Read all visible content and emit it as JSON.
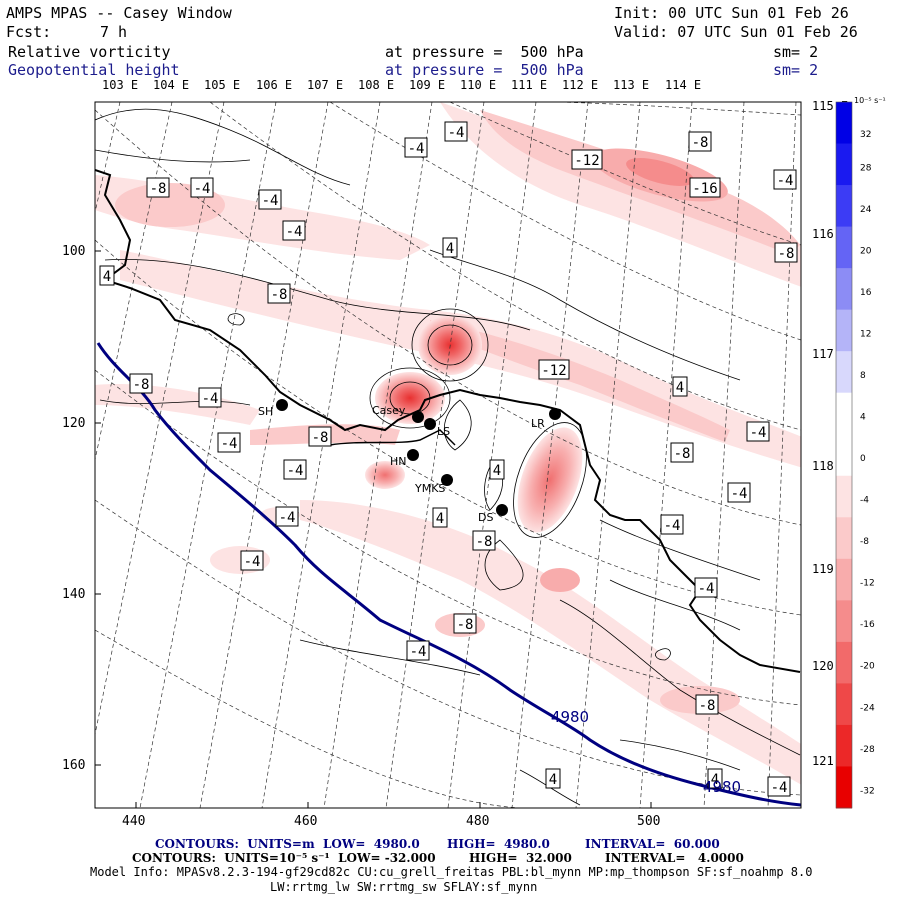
{
  "header": {
    "title": "AMPS MPAS -- Casey Window",
    "init_label": "Init: 00 UTC Sun 01 Feb 26",
    "fcst_label": "Fcst:",
    "fcst_value": "7 h",
    "valid_label": "Valid: 07 UTC Sun 01 Feb 26",
    "field1_name": "Relative vorticity",
    "field1_level": "at pressure =  500 hPa",
    "field1_sm": "sm= 2",
    "field2_name": "Geopotential height",
    "field2_level": "at pressure =  500 hPa",
    "field2_sm": "sm= 2"
  },
  "longitude_labels": [
    "103 E",
    "104 E",
    "105 E",
    "106 E",
    "107 E",
    "108 E",
    "109 E",
    "110 E",
    "111 E",
    "112 E",
    "113 E",
    "114 E",
    "115 E",
    "116 E",
    "117 E",
    "118 E",
    "119 E",
    "120 E",
    "121 E"
  ],
  "x_axis_ticks": [
    "440",
    "460",
    "480",
    "500"
  ],
  "y_axis_ticks": [
    "100",
    "120",
    "140",
    "160"
  ],
  "colorbar": {
    "unit_label": "10⁻⁵ s⁻¹",
    "levels": [
      32,
      28,
      24,
      20,
      16,
      12,
      8,
      4,
      0,
      -4,
      -8,
      -12,
      -16,
      -20,
      -24,
      -28,
      -32
    ],
    "colors": [
      "#0000e6",
      "#1a1af0",
      "#3c3cf5",
      "#6464f5",
      "#8c8cf5",
      "#b4b4f8",
      "#d8d8fc",
      "#ffffff",
      "#ffffff",
      "#fde3e3",
      "#fbcaca",
      "#f8acac",
      "#f58c8c",
      "#f26a6a",
      "#ef4848",
      "#ec2828",
      "#e80000"
    ]
  },
  "stations": [
    "SH",
    "Casey",
    "LS",
    "HN",
    "YMKS",
    "DS",
    "LR"
  ],
  "contour_labels": [
    "-4",
    "-8",
    "-12",
    "-16",
    "4",
    "4980"
  ],
  "footer": {
    "line1_prefix": "CONTOURS:  UNITS=m  LOW=  4980.0",
    "line1_high": "HIGH=  4980.0",
    "line1_interval": "INTERVAL=  60.000",
    "line2_prefix": "CONTOURS:  UNITS=10⁻⁵ s⁻¹  LOW= -32.000",
    "line2_high": "HIGH=  32.000",
    "line2_interval": "INTERVAL=   4.0000",
    "model_info": "Model Info: MPASv8.2.3-194-gf29cd82c CU:cu_grell_freitas PBL:bl_mynn MP:mp_thompson SF:sf_noahmp 8.0",
    "model_info2": "LW:rrtmg_lw SW:rrtmg_sw SFLAY:sf_mynn"
  }
}
